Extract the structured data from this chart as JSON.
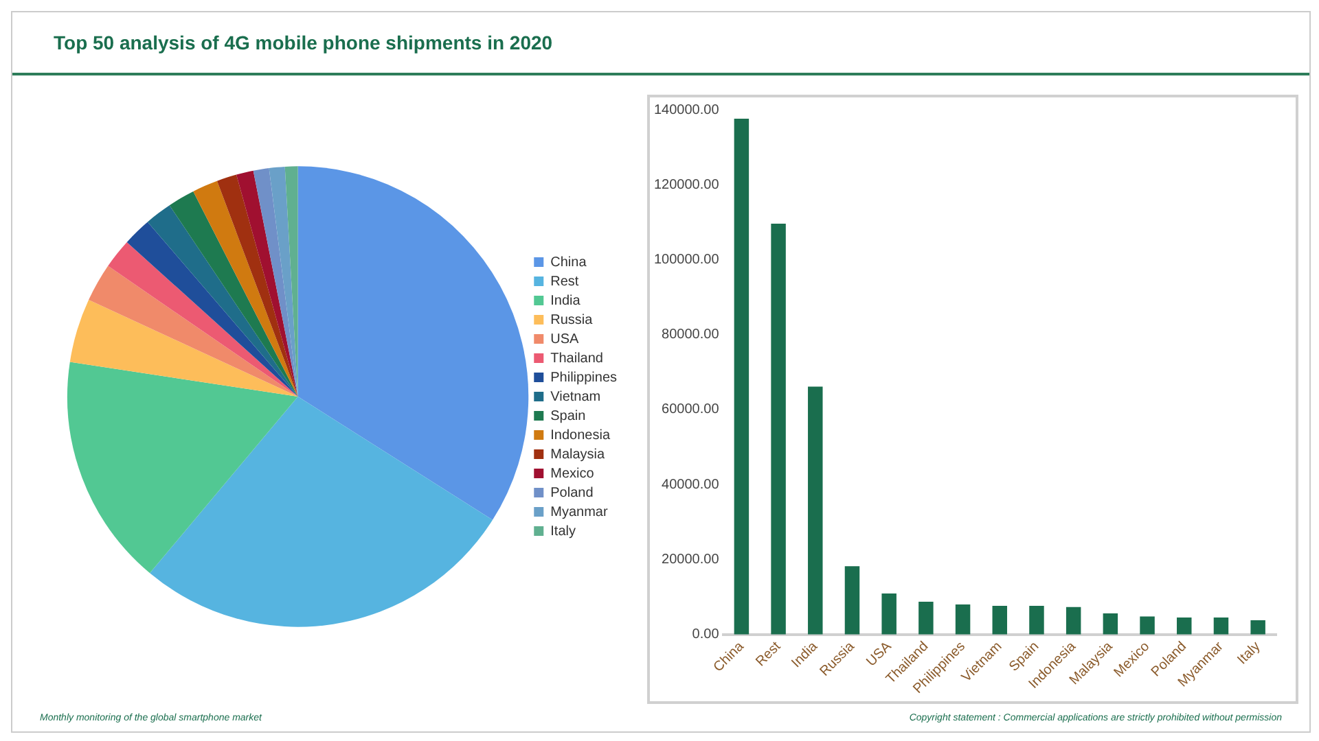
{
  "chart_data": [
    {
      "type": "pie",
      "title": "Top 50 analysis of 4G mobile phone shipments in 2020",
      "categories": [
        "China",
        "Rest",
        "India",
        "Russia",
        "USA",
        "Thailand",
        "Philippines",
        "Vietnam",
        "Spain",
        "Indonesia",
        "Malaysia",
        "Mexico",
        "Poland",
        "Myanmar",
        "Italy"
      ],
      "values": [
        34.0,
        27.1,
        16.3,
        4.5,
        2.7,
        2.1,
        2.0,
        1.9,
        1.9,
        1.8,
        1.4,
        1.2,
        1.1,
        1.1,
        0.9
      ],
      "colors": [
        "#5b96e6",
        "#56b4e0",
        "#52c893",
        "#fdbd5a",
        "#f08a6a",
        "#ec5a72",
        "#1f4e9a",
        "#1f6d8a",
        "#1e7a50",
        "#d07a10",
        "#a03010",
        "#a01030",
        "#7090c8",
        "#6aa0c8",
        "#60b090"
      ],
      "legend": "right",
      "annotations": [
        "Monthly monitoring of the global smartphone market"
      ]
    },
    {
      "type": "bar",
      "categories": [
        "China",
        "Rest",
        "India",
        "Russia",
        "USA",
        "Thailand",
        "Philippines",
        "Vietnam",
        "Spain",
        "Indonesia",
        "Malaysia",
        "Mexico",
        "Poland",
        "Myanmar",
        "Italy"
      ],
      "values": [
        137600,
        109600,
        66100,
        18200,
        10900,
        8700,
        8000,
        7600,
        7600,
        7300,
        5600,
        4800,
        4500,
        4500,
        3800
      ],
      "color": "#1a6e4e",
      "ylim": [
        0,
        140000
      ],
      "yticks": [
        {
          "value": 0,
          "label": "0.00"
        },
        {
          "value": 20000,
          "label": "20000.00"
        },
        {
          "value": 40000,
          "label": "40000.00"
        },
        {
          "value": 60000,
          "label": "60000.00"
        },
        {
          "value": 80000,
          "label": "80000.00"
        },
        {
          "value": 100000,
          "label": "100000.00"
        },
        {
          "value": 120000,
          "label": "120000.00"
        },
        {
          "value": 140000,
          "label": "140000.00"
        }
      ],
      "grid": false,
      "legend": false,
      "annotations": [
        "Copyright statement : Commercial applications are strictly prohibited without permission"
      ]
    }
  ]
}
